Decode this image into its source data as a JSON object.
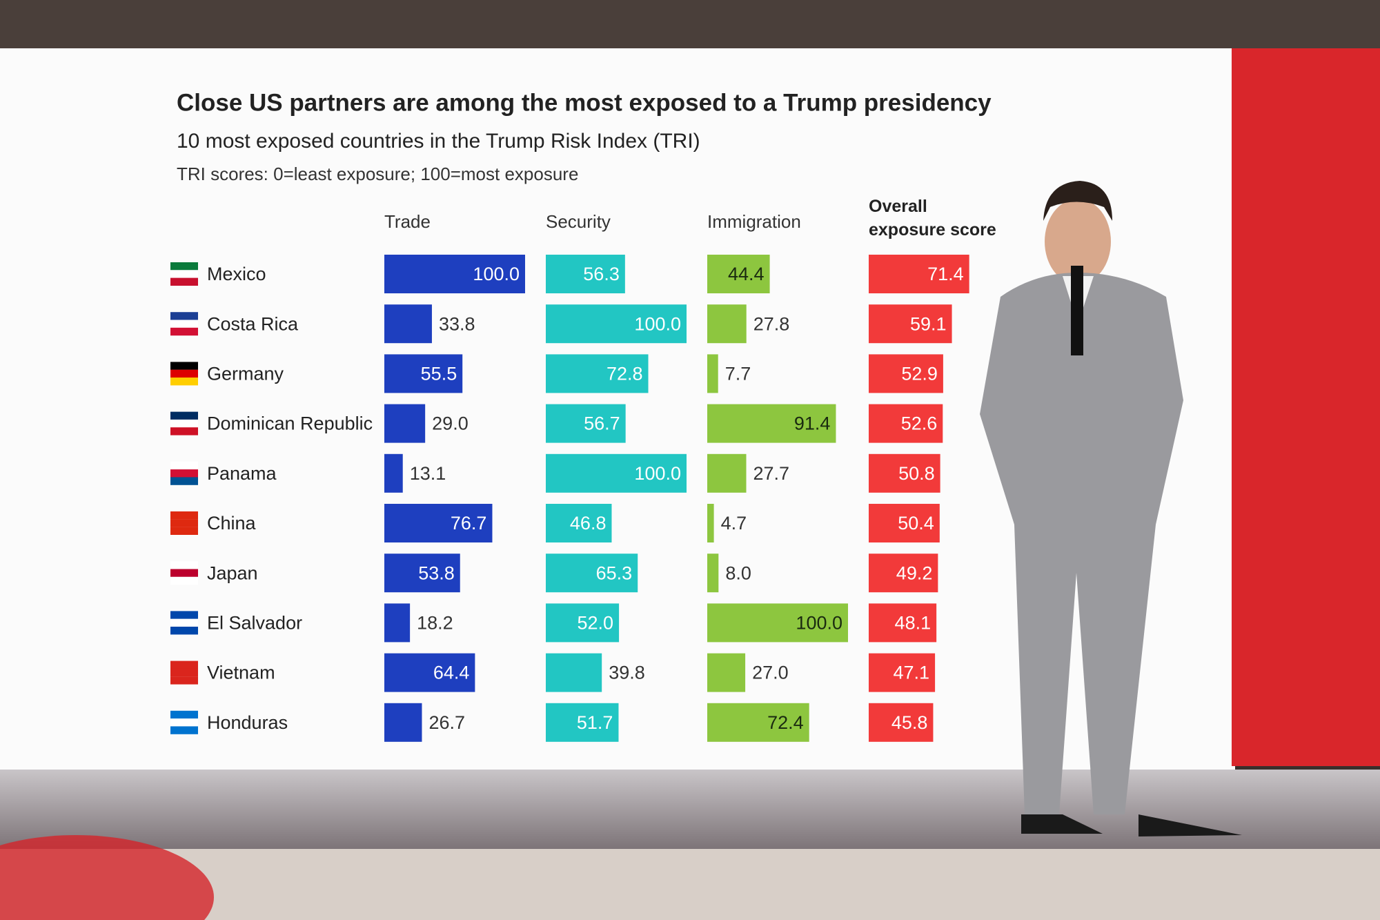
{
  "chart_data": {
    "type": "bar",
    "title": "Close US partners are among the most exposed to a Trump presidency",
    "subtitle": "10 most exposed countries in the Trump Risk Index (TRI)",
    "note": "TRI scores: 0=least exposure; 100=most exposure",
    "categories": [
      "Mexico",
      "Costa Rica",
      "Germany",
      "Dominican Republic",
      "Panama",
      "China",
      "Japan",
      "El Salvador",
      "Vietnam",
      "Honduras"
    ],
    "xlim": [
      0,
      100
    ],
    "series": [
      {
        "name": "Trade",
        "color": "#1e3fbf",
        "values": [
          100,
          33.8,
          55.5,
          29,
          13.1,
          76.7,
          53.8,
          18.2,
          64.4,
          26.7
        ],
        "value_labels": [
          "100.0",
          "33.8",
          "55.5",
          "29.0",
          "13.1",
          "76.7",
          "53.8",
          "18.2",
          "64.4",
          "26.7"
        ]
      },
      {
        "name": "Security",
        "color": "#22c6c3",
        "values": [
          56.3,
          100,
          72.8,
          56.7,
          100,
          46.8,
          65.3,
          52,
          39.8,
          51.7
        ],
        "value_labels": [
          "56.3",
          "100.0",
          "72.8",
          "56.7",
          "100.0",
          "46.8",
          "65.3",
          "52.0",
          "39.8",
          "51.7"
        ]
      },
      {
        "name": "Immigration",
        "color": "#8dc63f",
        "values": [
          44.4,
          27.8,
          7.7,
          91.4,
          27.7,
          4.7,
          8,
          100,
          27,
          72.4
        ],
        "value_labels": [
          "44.4",
          "27.8",
          "7.7",
          "91.4",
          "27.7",
          "4.7",
          "8.0",
          "100.0",
          "27.0",
          "72.4"
        ]
      },
      {
        "name": "Overall exposure score",
        "color": "#f23a3a",
        "values": [
          71.4,
          59.1,
          52.9,
          52.6,
          50.8,
          50.4,
          49.2,
          48.1,
          47.1,
          45.8
        ],
        "value_labels": [
          "71.4",
          "59.1",
          "52.9",
          "52.6",
          "50.8",
          "50.4",
          "49.2",
          "48.1",
          "47.1",
          "45.8"
        ]
      }
    ]
  }
}
